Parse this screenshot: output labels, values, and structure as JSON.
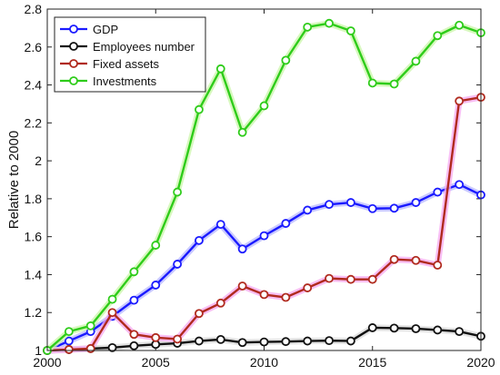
{
  "chart_data": {
    "type": "line",
    "title": "",
    "xlabel": "",
    "ylabel": "Relative to 2000",
    "x": [
      2000,
      2001,
      2002,
      2003,
      2004,
      2005,
      2006,
      2007,
      2008,
      2009,
      2010,
      2011,
      2012,
      2013,
      2014,
      2015,
      2016,
      2017,
      2018,
      2019,
      2020
    ],
    "xlim": [
      2000,
      2020
    ],
    "ylim": [
      1,
      2.8
    ],
    "xticks": [
      2000,
      2005,
      2010,
      2015,
      2020
    ],
    "yticks": [
      1,
      1.2,
      1.4,
      1.6,
      1.8,
      2,
      2.2,
      2.4,
      2.6,
      2.8
    ],
    "xtick_labels": [
      "2000",
      "2005",
      "2010",
      "2015",
      "2020"
    ],
    "ytick_labels": [
      "1",
      "1.2",
      "1.4",
      "1.6",
      "1.8",
      "2",
      "2.2",
      "2.4",
      "2.6",
      "2.8"
    ],
    "grid": false,
    "legend_position": "top-left",
    "series": [
      {
        "name": "GDP",
        "color": "#1a1aff",
        "glow": "#b8b8ff",
        "values": [
          1.0,
          1.05,
          1.1,
          1.18,
          1.265,
          1.345,
          1.455,
          1.58,
          1.665,
          1.535,
          1.605,
          1.67,
          1.74,
          1.77,
          1.78,
          1.748,
          1.75,
          1.78,
          1.835,
          1.875,
          1.82
        ]
      },
      {
        "name": "Employees number",
        "color": "#111111",
        "glow": "#d9d9d9",
        "values": [
          1.0,
          1.005,
          1.01,
          1.015,
          1.025,
          1.032,
          1.038,
          1.05,
          1.058,
          1.042,
          1.045,
          1.047,
          1.05,
          1.052,
          1.05,
          1.12,
          1.118,
          1.115,
          1.108,
          1.1,
          1.075
        ]
      },
      {
        "name": "Fixed assets",
        "color": "#b02a1e",
        "glow": "#f6a8f0",
        "values": [
          1.0,
          1.005,
          1.01,
          1.2,
          1.085,
          1.068,
          1.06,
          1.195,
          1.25,
          1.34,
          1.295,
          1.28,
          1.33,
          1.38,
          1.375,
          1.375,
          1.48,
          1.475,
          1.45,
          2.315,
          2.335
        ]
      },
      {
        "name": "Investments",
        "color": "#2ecc1a",
        "glow": "#c9f5a8",
        "values": [
          1.0,
          1.1,
          1.13,
          1.27,
          1.415,
          1.555,
          1.835,
          2.27,
          2.485,
          2.15,
          2.29,
          2.53,
          2.705,
          2.725,
          2.685,
          2.41,
          2.405,
          2.525,
          2.66,
          2.715,
          2.675
        ]
      }
    ]
  }
}
